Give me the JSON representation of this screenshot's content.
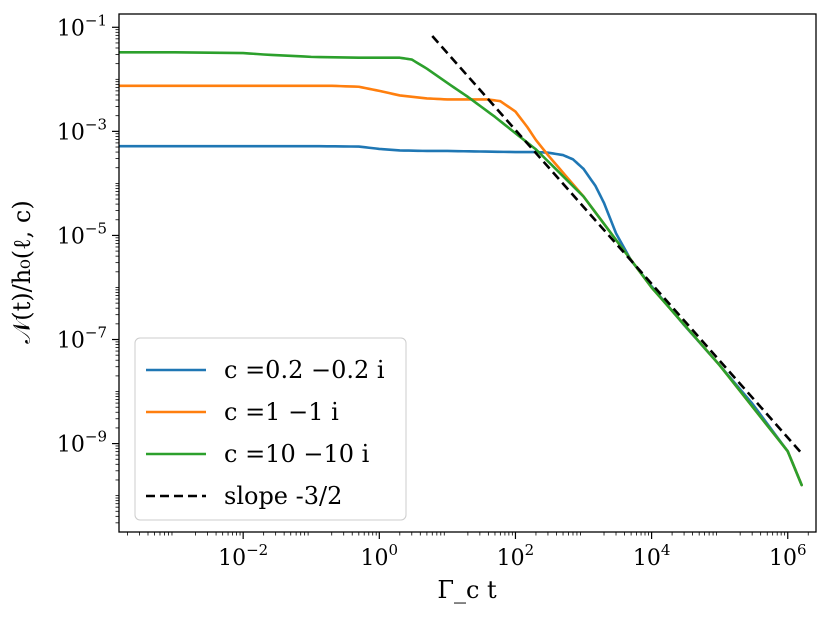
{
  "chart_data": {
    "type": "line",
    "x_scale": "log",
    "y_scale": "log",
    "xlabel": "Γ_c t",
    "ylabel": "𝒩(t)/h₀(ℓ, c)",
    "xlim": [
      0.00015,
      2600000.0
    ],
    "ylim": [
      2e-11,
      0.18
    ],
    "x_ticks": [
      {
        "base": "10",
        "exp": "−2",
        "value": 0.01
      },
      {
        "base": "10",
        "exp": "0",
        "value": 1
      },
      {
        "base": "10",
        "exp": "2",
        "value": 100
      },
      {
        "base": "10",
        "exp": "4",
        "value": 10000
      },
      {
        "base": "10",
        "exp": "6",
        "value": 1000000
      }
    ],
    "y_ticks": [
      {
        "base": "10",
        "exp": "−1",
        "value": 0.1
      },
      {
        "base": "10",
        "exp": "−3",
        "value": 0.001
      },
      {
        "base": "10",
        "exp": "−5",
        "value": 1e-05
      },
      {
        "base": "10",
        "exp": "−7",
        "value": 1e-07
      },
      {
        "base": "10",
        "exp": "−9",
        "value": 1e-09
      }
    ],
    "legend_position": "lower-left",
    "series": [
      {
        "name": "c =0.2 −0.2 i",
        "color": "#1f77b4",
        "style": "solid",
        "x": [
          0.00015,
          0.001,
          0.01,
          0.1,
          0.5,
          1,
          2,
          5,
          10,
          30,
          100,
          200,
          300,
          500,
          700,
          1000,
          1500,
          2000,
          3000,
          5000,
          10000,
          30000,
          100000,
          300000,
          1000000,
          1600000
        ],
        "y": [
          0.00052,
          0.00052,
          0.00052,
          0.00052,
          0.00051,
          0.00046,
          0.00043,
          0.00042,
          0.00042,
          0.00041,
          0.0004,
          0.0004,
          0.00039,
          0.00035,
          0.00029,
          0.00019,
          8.9e-05,
          4.2e-05,
          1.1e-05,
          3.3e-06,
          1.05e-06,
          1.9e-07,
          3.2e-08,
          5.9e-09,
          7.1e-10,
          1.6e-10
        ]
      },
      {
        "name": "c =1 −1 i",
        "color": "#ff7f0e",
        "style": "solid",
        "x": [
          0.00015,
          0.001,
          0.01,
          0.05,
          0.2,
          0.5,
          1,
          2,
          5,
          10,
          20,
          40,
          60,
          100,
          150,
          200,
          300,
          1000,
          10000,
          100000,
          1000000,
          1600000
        ],
        "y": [
          0.0075,
          0.0075,
          0.0075,
          0.0075,
          0.0075,
          0.0072,
          0.006,
          0.0049,
          0.0043,
          0.0041,
          0.0041,
          0.0041,
          0.0038,
          0.0024,
          0.0012,
          0.00068,
          0.00035,
          5.6e-05,
          1e-06,
          3.2e-08,
          7.1e-10,
          1.6e-10
        ]
      },
      {
        "name": "c =10 −10 i",
        "color": "#2ca02c",
        "style": "solid",
        "x": [
          0.00015,
          0.001,
          0.01,
          0.02,
          0.1,
          0.5,
          1,
          2,
          3,
          5,
          10,
          20,
          50,
          100,
          200,
          1000,
          10000,
          100000,
          1000000,
          1600000
        ],
        "y": [
          0.033,
          0.033,
          0.032,
          0.03,
          0.027,
          0.026,
          0.026,
          0.026,
          0.024,
          0.016,
          0.0085,
          0.0046,
          0.0019,
          0.00092,
          0.00045,
          5.6e-05,
          1e-06,
          3.2e-08,
          7.1e-10,
          1.6e-10
        ]
      },
      {
        "name": "slope -3/2",
        "color": "#000000",
        "style": "dashed",
        "x": [
          6,
          1600000
        ],
        "y": [
          0.068,
          6.5e-10
        ]
      }
    ]
  }
}
